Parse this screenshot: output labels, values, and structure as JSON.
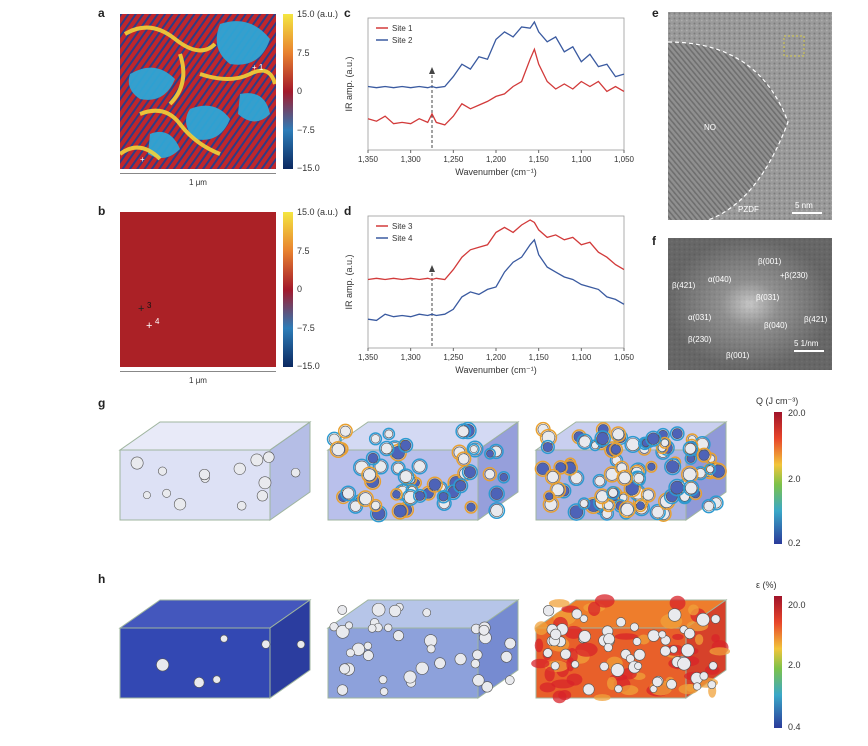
{
  "panels": {
    "a": {
      "label": "a",
      "scale": "1 μm",
      "cb_ticks": [
        "15.0 (a.u.)",
        "7.5",
        "0",
        "−7.5",
        "−15.0"
      ]
    },
    "b": {
      "label": "b",
      "scale": "1 μm",
      "cb_ticks": [
        "15.0 (a.u.)",
        "7.5",
        "0",
        "−7.5",
        "−15.0"
      ],
      "markers": [
        "3",
        "4"
      ]
    },
    "c": {
      "label": "c"
    },
    "d": {
      "label": "d"
    },
    "e": {
      "label": "e",
      "region_labels": [
        "NO",
        "PZDF"
      ],
      "scale": "5 nm"
    },
    "f": {
      "label": "f",
      "scale": "5 1/nm",
      "spots": [
        "β(001)",
        "+β(230)",
        "β(421)",
        "α(040)",
        "β(031)",
        "α(031)",
        "β(040)",
        "β(421)",
        "β(230)",
        "β(001)"
      ]
    },
    "g": {
      "label": "g",
      "cb_title": "Q (J cm⁻³)",
      "cb_ticks": [
        "20.0",
        "2.0",
        "0.2"
      ]
    },
    "h": {
      "label": "h",
      "cb_title": "ε (%)",
      "cb_ticks": [
        "20.0",
        "2.0",
        "0.4"
      ]
    }
  },
  "chart_data": [
    {
      "panel": "c",
      "type": "line",
      "xlabel": "Wavenumber (cm⁻¹)",
      "ylabel": "IR amp. (a.u.)",
      "xlim": [
        1350,
        1050
      ],
      "xticks": [
        "1,350",
        "1,300",
        "1,250",
        "1,200",
        "1,150",
        "1,100",
        "1,050"
      ],
      "marker_x": 1275,
      "series": [
        {
          "name": "Site 1",
          "color": "#d23a3a",
          "x": [
            1350,
            1340,
            1330,
            1320,
            1310,
            1300,
            1290,
            1280,
            1275,
            1270,
            1260,
            1250,
            1240,
            1230,
            1220,
            1210,
            1200,
            1190,
            1180,
            1170,
            1160,
            1155,
            1150,
            1140,
            1130,
            1120,
            1110,
            1100,
            1090,
            1080,
            1070,
            1060,
            1050
          ],
          "y": [
            0.22,
            0.2,
            0.24,
            0.18,
            0.19,
            0.18,
            0.22,
            0.19,
            0.26,
            0.19,
            0.17,
            0.24,
            0.34,
            0.3,
            0.33,
            0.36,
            0.4,
            0.42,
            0.48,
            0.52,
            0.7,
            0.78,
            0.66,
            0.52,
            0.46,
            0.5,
            0.46,
            0.52,
            0.48,
            0.52,
            0.44,
            0.48,
            0.44
          ]
        },
        {
          "name": "Site 2",
          "color": "#3a5aa0",
          "x": [
            1350,
            1340,
            1330,
            1320,
            1310,
            1300,
            1290,
            1280,
            1275,
            1270,
            1260,
            1250,
            1240,
            1230,
            1220,
            1210,
            1200,
            1190,
            1180,
            1170,
            1160,
            1155,
            1150,
            1140,
            1130,
            1120,
            1110,
            1100,
            1090,
            1080,
            1070,
            1060,
            1050
          ],
          "y": [
            0.48,
            0.47,
            0.48,
            0.47,
            0.48,
            0.47,
            0.48,
            0.47,
            0.48,
            0.47,
            0.48,
            0.56,
            0.66,
            0.62,
            0.72,
            0.7,
            0.86,
            0.92,
            0.88,
            0.96,
            0.95,
            1.0,
            0.92,
            0.84,
            0.88,
            0.76,
            0.8,
            0.68,
            0.74,
            0.64,
            0.66,
            0.56,
            0.58
          ]
        }
      ]
    },
    {
      "panel": "d",
      "type": "line",
      "xlabel": "Wavenumber (cm⁻¹)",
      "ylabel": "IR amp. (a.u.)",
      "xlim": [
        1350,
        1050
      ],
      "xticks": [
        "1,350",
        "1,300",
        "1,250",
        "1,200",
        "1,150",
        "1,100",
        "1,050"
      ],
      "marker_x": 1275,
      "series": [
        {
          "name": "Site 3",
          "color": "#d23a3a",
          "x": [
            1350,
            1340,
            1330,
            1320,
            1310,
            1300,
            1290,
            1280,
            1275,
            1270,
            1260,
            1250,
            1240,
            1230,
            1220,
            1210,
            1200,
            1190,
            1180,
            1170,
            1160,
            1155,
            1150,
            1140,
            1130,
            1120,
            1110,
            1100,
            1090,
            1080,
            1070,
            1060,
            1050
          ],
          "y": [
            0.52,
            0.53,
            0.52,
            0.53,
            0.52,
            0.53,
            0.52,
            0.53,
            0.52,
            0.53,
            0.52,
            0.6,
            0.7,
            0.76,
            0.78,
            0.8,
            0.9,
            0.94,
            0.9,
            0.96,
            1.0,
            0.98,
            0.92,
            0.86,
            0.88,
            0.84,
            0.86,
            0.8,
            0.82,
            0.74,
            0.7,
            0.64,
            0.6
          ]
        },
        {
          "name": "Site 4",
          "color": "#3a5aa0",
          "x": [
            1350,
            1340,
            1330,
            1320,
            1310,
            1300,
            1290,
            1280,
            1275,
            1270,
            1260,
            1250,
            1240,
            1230,
            1220,
            1210,
            1200,
            1190,
            1180,
            1170,
            1160,
            1155,
            1150,
            1140,
            1130,
            1120,
            1110,
            1100,
            1090,
            1080,
            1070,
            1060,
            1050
          ],
          "y": [
            0.2,
            0.19,
            0.24,
            0.22,
            0.23,
            0.22,
            0.24,
            0.23,
            0.24,
            0.23,
            0.24,
            0.28,
            0.38,
            0.42,
            0.4,
            0.44,
            0.46,
            0.58,
            0.66,
            0.7,
            0.8,
            0.84,
            0.72,
            0.62,
            0.58,
            0.54,
            0.52,
            0.48,
            0.46,
            0.44,
            0.38,
            0.36,
            0.32
          ]
        }
      ]
    }
  ]
}
